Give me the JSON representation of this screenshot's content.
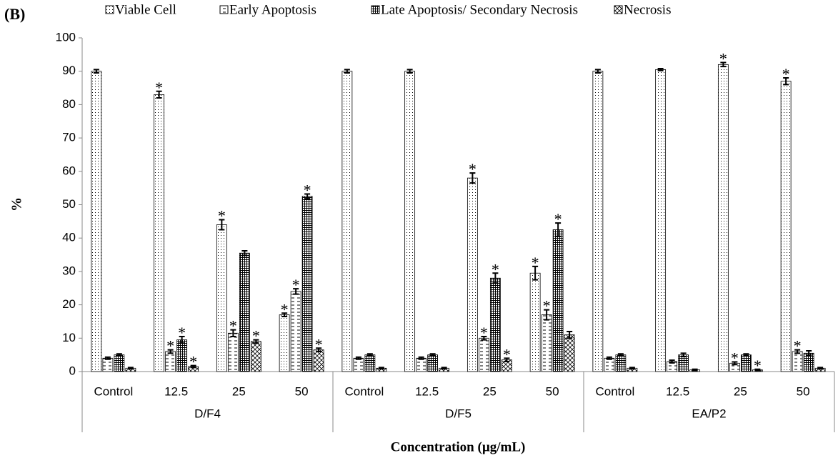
{
  "chart_data": {
    "type": "bar",
    "panel_label": "(B)",
    "ylabel": "%",
    "xlabel": "Concentration (µg/mL)",
    "categories": [
      "Control",
      "12.5",
      "25",
      "50",
      "Control",
      "12.5",
      "25",
      "50",
      "Control",
      "12.5",
      "25",
      "50"
    ],
    "groups": [
      "D/F4",
      "D/F5",
      "EA/P2"
    ],
    "legend_position": "top",
    "grid": false,
    "ylim": [
      0,
      100
    ],
    "yticks": [
      0,
      10,
      20,
      30,
      40,
      50,
      60,
      70,
      80,
      90,
      100
    ],
    "series": [
      {
        "name": "Viable Cell",
        "color": "#000000",
        "pattern": "dots",
        "values": [
          90,
          83,
          44,
          17,
          90,
          90,
          58,
          29.5,
          90,
          90.5,
          92,
          87
        ],
        "errors": [
          0.5,
          1,
          1.5,
          0.5,
          0.5,
          0.5,
          1.5,
          2,
          0.5,
          0.3,
          0.6,
          1
        ],
        "annotations": [
          null,
          "*",
          "*",
          "*",
          null,
          null,
          "*",
          "*",
          null,
          null,
          "*",
          "*"
        ]
      },
      {
        "name": "Early Apoptosis",
        "color": "#000000",
        "pattern": "dashes",
        "values": [
          4,
          6,
          11.5,
          24,
          4,
          4,
          10,
          17,
          4,
          3,
          2.5,
          6
        ],
        "errors": [
          0.3,
          0.5,
          1,
          0.8,
          0.3,
          0.3,
          0.5,
          1.5,
          0.3,
          0.4,
          0.4,
          0.5
        ],
        "annotations": [
          null,
          "*",
          "*",
          "*",
          null,
          null,
          "*",
          "*",
          null,
          null,
          "*",
          "*"
        ]
      },
      {
        "name": "Late Apoptosis/ Secondary Necrosis",
        "color": "#000000",
        "pattern": "grid",
        "values": [
          5,
          9.5,
          35.5,
          52.5,
          5,
          5,
          28,
          42.5,
          5,
          5,
          5,
          5.5
        ],
        "errors": [
          0.3,
          1,
          0.7,
          0.7,
          0.3,
          0.3,
          1.5,
          2,
          0.3,
          0.5,
          0.3,
          0.7
        ],
        "annotations": [
          null,
          "*",
          null,
          "*",
          null,
          null,
          "*",
          "*",
          null,
          null,
          null,
          null
        ]
      },
      {
        "name": "Necrosis",
        "color": "#000000",
        "pattern": "cross",
        "values": [
          1,
          1.5,
          9,
          6.5,
          1,
          1,
          3.5,
          11,
          1,
          0.5,
          0.5,
          1
        ],
        "errors": [
          0.2,
          0.3,
          0.5,
          0.5,
          0.2,
          0.2,
          0.5,
          1,
          0.2,
          0.2,
          0.2,
          0.2
        ],
        "annotations": [
          null,
          "*",
          "*",
          "*",
          null,
          null,
          "*",
          null,
          null,
          null,
          "*",
          null
        ]
      }
    ]
  }
}
